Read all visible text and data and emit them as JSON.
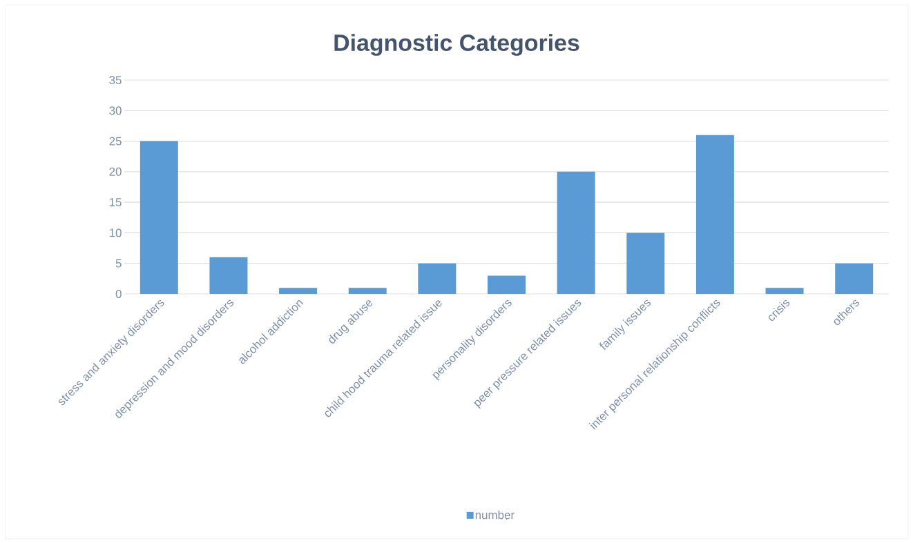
{
  "chart_data": {
    "type": "bar",
    "title": "Diagnostic Categories",
    "categories": [
      "stress and anxiety disorders",
      "depression and mood disorders",
      "alcohol addiction",
      "drug abuse",
      "child hood trauma related issue",
      "personality disorders",
      "peer pressure related issues",
      "family issues",
      "inter personal relationship conflicts",
      "crisis",
      "others"
    ],
    "series": [
      {
        "name": "number",
        "color": "#5b9bd5",
        "values": [
          25,
          6,
          1,
          1,
          5,
          3,
          20,
          10,
          26,
          1,
          5
        ]
      }
    ],
    "ylim": [
      0,
      35
    ],
    "yticks": [
      0,
      5,
      10,
      15,
      20,
      25,
      30,
      35
    ],
    "grid": "y",
    "legend": "bottom"
  }
}
